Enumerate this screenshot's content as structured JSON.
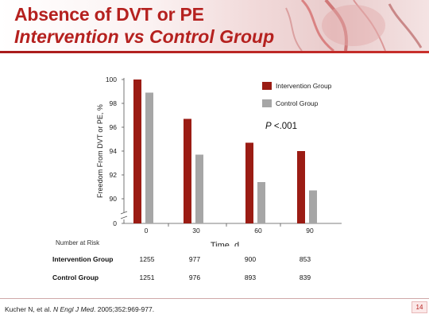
{
  "slide": {
    "title_line1": "Absence of DVT or PE",
    "title_line2": "Intervention vs Control Group",
    "slide_number": "14"
  },
  "citation": {
    "authors": "Kucher N, et al.",
    "journal": "N Engl J Med",
    "details": ". 2005;352:969-977."
  },
  "colors": {
    "intervention": "#9b1c14",
    "control": "#a6a6a6",
    "title": "#b5211f"
  },
  "chart_data": {
    "type": "bar",
    "x": [
      0,
      30,
      60,
      90
    ],
    "categories": [
      "0",
      "30",
      "60",
      "90"
    ],
    "series": [
      {
        "name": "Intervention Group",
        "values": [
          100.0,
          96.7,
          94.7,
          94.0
        ],
        "color": "#9b1c14"
      },
      {
        "name": "Control Group",
        "values": [
          98.9,
          93.7,
          91.4,
          90.7
        ],
        "color": "#a6a6a6"
      }
    ],
    "xlabel": "Time, d",
    "ylabel": "Freedom From DVT or PE, %",
    "ylim": [
      0,
      100
    ],
    "y_axis_break": true,
    "y_ticks": [
      "0",
      "90",
      "92",
      "94",
      "96",
      "98",
      "100"
    ],
    "y_tick_values": [
      0,
      90,
      92,
      94,
      96,
      98,
      100
    ],
    "annotation": {
      "italic": "P",
      "text": " <.001"
    },
    "legend_position": "top-right"
  },
  "number_at_risk": {
    "label": "Number at Risk",
    "rows": [
      {
        "label": "Intervention Group",
        "values": [
          "1255",
          "977",
          "900",
          "853"
        ]
      },
      {
        "label": "Control Group",
        "values": [
          "1251",
          "976",
          "893",
          "839"
        ]
      }
    ]
  }
}
